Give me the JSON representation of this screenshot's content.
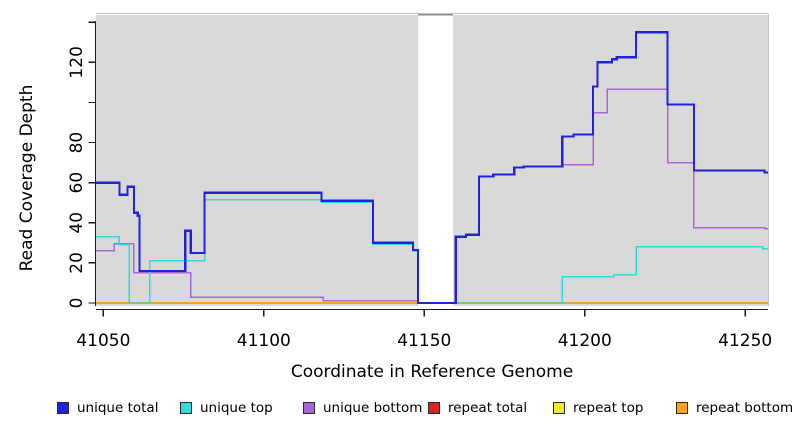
{
  "chart_data": {
    "type": "line",
    "step": true,
    "title": "",
    "xlabel": "Coordinate in Reference Genome",
    "ylabel": "Read Coverage Depth",
    "xlim": [
      41047.7,
      41257.1
    ],
    "ylim": [
      0,
      143.6
    ],
    "x_ticks": [
      41050,
      41100,
      41150,
      41200,
      41250
    ],
    "y_ticks": [
      0,
      20,
      40,
      60,
      80,
      100,
      120,
      140
    ],
    "y_tick_labels": [
      "0",
      "20",
      "40",
      "60",
      "80",
      "",
      "120",
      ""
    ],
    "grid": false,
    "legend_position": "bottom",
    "background": "#ffffff",
    "panel_bg": "#d9d9d9",
    "axis_color": "#1a1a1a",
    "border_color": "#c3c3c3",
    "masked_region": {
      "x0": 41148.1,
      "x1": 41159.0,
      "fill": "#ffffff",
      "top_edge_color": "#8e8e8e"
    },
    "series": [
      {
        "name": "unique total",
        "color": "#2222dd",
        "width": 2.2,
        "points": [
          [
            41047.7,
            60
          ],
          [
            41055,
            54
          ],
          [
            41057.5,
            58
          ],
          [
            41059.5,
            45
          ],
          [
            41060.7,
            43.5
          ],
          [
            41061.3,
            16
          ],
          [
            41075.5,
            36
          ],
          [
            41077.2,
            25
          ],
          [
            41081.5,
            55
          ],
          [
            41118,
            51
          ],
          [
            41134,
            30
          ],
          [
            41146.5,
            26.5
          ],
          [
            41148,
            0
          ],
          [
            41159.8,
            33
          ],
          [
            41163,
            34
          ],
          [
            41167,
            63
          ],
          [
            41171.5,
            64
          ],
          [
            41178,
            67.5
          ],
          [
            41181,
            68
          ],
          [
            41193,
            83
          ],
          [
            41196.5,
            84
          ],
          [
            41202.6,
            108
          ],
          [
            41204,
            120
          ],
          [
            41208.5,
            121.5
          ],
          [
            41210,
            122.5
          ],
          [
            41216,
            135
          ],
          [
            41225.8,
            99
          ],
          [
            41234,
            66
          ],
          [
            41256,
            65
          ]
        ]
      },
      {
        "name": "unique top",
        "color": "#35d8d8",
        "width": 1.5,
        "points": [
          [
            41047.7,
            33
          ],
          [
            41055,
            29
          ],
          [
            41058.1,
            0
          ],
          [
            41064.5,
            21
          ],
          [
            41081.5,
            51.5
          ],
          [
            41118,
            50.3
          ],
          [
            41134,
            29.3
          ],
          [
            41146.5,
            25.8
          ],
          [
            41148,
            0
          ],
          [
            41193,
            13
          ],
          [
            41209,
            14
          ],
          [
            41216,
            28
          ],
          [
            41255.5,
            27
          ]
        ]
      },
      {
        "name": "unique bottom",
        "color": "#aa66d6",
        "width": 1.5,
        "points": [
          [
            41047.7,
            26
          ],
          [
            41053.4,
            29.5
          ],
          [
            41059.5,
            15
          ],
          [
            41077.2,
            3
          ],
          [
            41118.5,
            1.2
          ],
          [
            41148,
            0
          ],
          [
            41159.8,
            33
          ],
          [
            41163,
            34
          ],
          [
            41167,
            63
          ],
          [
            41171.5,
            64
          ],
          [
            41178,
            67.5
          ],
          [
            41181,
            68
          ],
          [
            41193,
            69
          ],
          [
            41202.6,
            95
          ],
          [
            41207,
            106.5
          ],
          [
            41225.8,
            70
          ],
          [
            41234,
            37.5
          ],
          [
            41256,
            37
          ]
        ]
      },
      {
        "name": "repeat total",
        "color": "#dd2222",
        "width": 1.5,
        "points": [
          [
            41047.7,
            0
          ]
        ]
      },
      {
        "name": "repeat top",
        "color": "#eeea30",
        "width": 1.5,
        "points": [
          [
            41047.7,
            0
          ]
        ]
      },
      {
        "name": "repeat bottom",
        "color": "#ff9f20",
        "width": 1.8,
        "points": [
          [
            41047.7,
            0
          ]
        ]
      }
    ]
  }
}
